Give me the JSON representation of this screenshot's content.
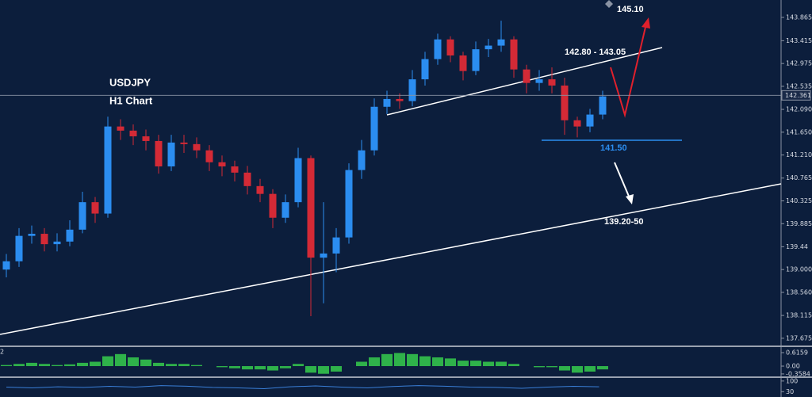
{
  "chart_data": [
    {
      "type": "candlestick",
      "title": "USDJPY",
      "subtitle": "H1 Chart",
      "up_color": "#2b8df0",
      "down_color": "#d42a36",
      "open": [
        139.0,
        139.16,
        139.65,
        139.69,
        139.49,
        139.54,
        139.77,
        140.3,
        140.08,
        141.76,
        141.68,
        141.57,
        141.48,
        140.99,
        141.45,
        141.42,
        141.3,
        141.07,
        140.99,
        140.87,
        140.61,
        140.46,
        140.0,
        140.3,
        141.15,
        139.23,
        139.31,
        139.62,
        140.92,
        141.3,
        142.14,
        142.29,
        142.25,
        142.67,
        143.06,
        143.44,
        143.13,
        142.83,
        143.25,
        143.32,
        143.44,
        142.86,
        142.6,
        142.67,
        142.55,
        141.88,
        141.76,
        141.99
      ],
      "high": [
        139.3,
        139.8,
        139.85,
        139.8,
        139.7,
        139.95,
        140.5,
        140.4,
        141.95,
        141.9,
        141.8,
        141.7,
        141.6,
        141.6,
        141.6,
        141.55,
        141.4,
        141.2,
        141.1,
        141.0,
        140.75,
        140.55,
        140.45,
        141.35,
        141.2,
        140.3,
        139.8,
        141.05,
        141.5,
        142.3,
        142.45,
        142.4,
        142.85,
        143.2,
        143.55,
        143.5,
        143.2,
        143.4,
        143.45,
        143.8,
        143.5,
        142.95,
        142.85,
        142.9,
        142.7,
        141.95,
        142.1,
        142.45
      ],
      "low": [
        138.85,
        139.05,
        139.5,
        139.35,
        139.35,
        139.45,
        139.7,
        139.9,
        140.0,
        141.5,
        141.4,
        141.3,
        140.85,
        140.9,
        141.25,
        141.15,
        140.9,
        140.8,
        140.7,
        140.45,
        140.3,
        139.8,
        139.9,
        140.2,
        138.1,
        138.35,
        138.95,
        139.5,
        140.75,
        141.2,
        142.0,
        142.1,
        142.15,
        142.55,
        142.95,
        143.0,
        142.65,
        142.75,
        143.1,
        143.2,
        142.7,
        142.4,
        142.45,
        142.4,
        141.6,
        141.55,
        141.65,
        141.9
      ],
      "close": [
        139.16,
        139.65,
        139.69,
        139.49,
        139.54,
        139.77,
        140.3,
        140.08,
        141.76,
        141.68,
        141.57,
        141.48,
        140.99,
        141.45,
        141.42,
        141.3,
        141.07,
        140.99,
        140.87,
        140.61,
        140.46,
        140.0,
        140.3,
        141.15,
        139.23,
        139.31,
        139.62,
        140.92,
        141.3,
        142.14,
        142.29,
        142.25,
        142.67,
        143.06,
        143.44,
        143.13,
        142.83,
        143.25,
        143.32,
        143.44,
        142.86,
        142.6,
        142.67,
        142.55,
        141.88,
        141.76,
        141.99,
        142.34
      ],
      "last_price": 142.361,
      "ylim": [
        137.52,
        144.2
      ],
      "yticks": [
        143.865,
        143.415,
        142.975,
        142.535,
        {
          "value": 142.09,
          "label": "142.090"
        },
        {
          "value": 141.65,
          "label": "141.650"
        },
        {
          "value": 141.21,
          "label": "141.210"
        },
        140.765,
        140.325,
        139.885,
        139.44,
        {
          "value": 139.0,
          "label": "139.000"
        },
        {
          "value": 138.56,
          "label": "138.560"
        },
        138.115,
        137.675
      ],
      "annotations": [
        "145.10",
        "142.80 - 143.05",
        "141.50",
        "139.20-50"
      ]
    },
    {
      "type": "bar",
      "label": "2",
      "color": "#2fb24a",
      "values": [
        0.05,
        0.1,
        0.15,
        0.1,
        0.05,
        0.08,
        0.15,
        0.2,
        0.45,
        0.55,
        0.4,
        0.3,
        0.15,
        0.1,
        0.1,
        0.05,
        0.0,
        -0.05,
        -0.1,
        -0.15,
        -0.15,
        -0.2,
        -0.1,
        0.1,
        -0.3,
        -0.35,
        -0.25,
        0.0,
        0.2,
        0.4,
        0.55,
        0.6,
        0.55,
        0.45,
        0.4,
        0.35,
        0.25,
        0.25,
        0.2,
        0.2,
        0.1,
        0.0,
        -0.05,
        -0.05,
        -0.2,
        -0.3,
        -0.25,
        -0.15
      ],
      "ylim": [
        -0.47,
        0.87
      ],
      "yticks": [
        0.6159,
        {
          "value": 0,
          "label": "0.00"
        },
        -0.3584
      ]
    },
    {
      "type": "line",
      "color": "#3a7fd8",
      "values": [
        60,
        55,
        62,
        58,
        65,
        60,
        70,
        66,
        58,
        55,
        50,
        62,
        68,
        60,
        55,
        64,
        70,
        66,
        60,
        58,
        52,
        60,
        65,
        62
      ],
      "ylim": [
        -5,
        120
      ],
      "yticks": [
        100,
        30
      ]
    }
  ]
}
